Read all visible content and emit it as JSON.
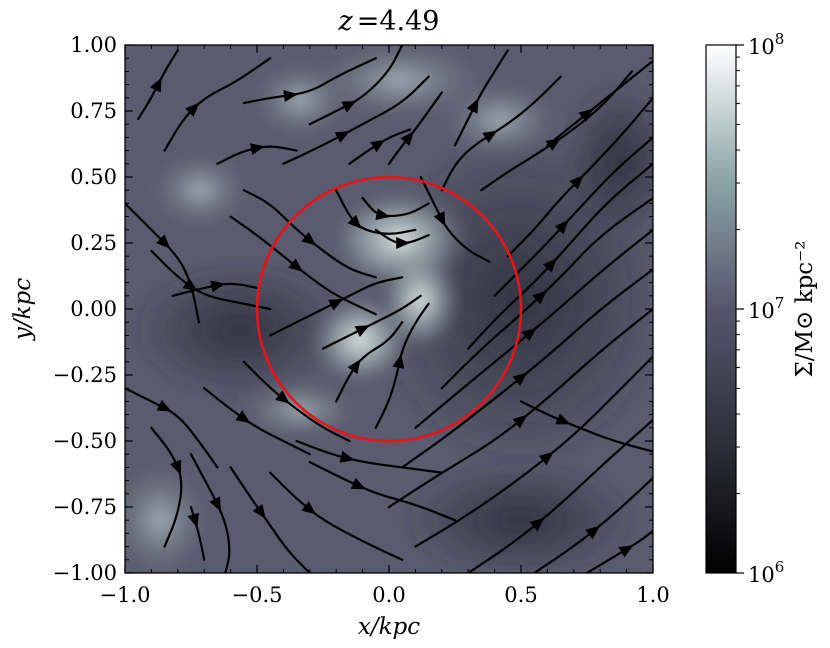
{
  "chart_data": {
    "type": "heatmap",
    "title": "z =4.49",
    "title_prefix": "z",
    "title_value": "=4.49",
    "xlabel": "x/kpc",
    "ylabel": "y/kpc",
    "xlim": [
      -1.0,
      1.0
    ],
    "ylim": [
      -1.0,
      1.0
    ],
    "xticks": [
      -1.0,
      -0.5,
      0.0,
      0.5,
      1.0
    ],
    "xtick_labels": [
      "−1.0",
      "−0.5",
      "0.0",
      "0.5",
      "1.0"
    ],
    "yticks": [
      1.0,
      0.75,
      0.5,
      0.25,
      0.0,
      -0.25,
      -0.5,
      -0.75,
      -1.0
    ],
    "ytick_labels": [
      "1.00",
      "0.75",
      "0.50",
      "0.25",
      "0.00",
      "−0.25",
      "−0.50",
      "−0.75",
      "−1.00"
    ],
    "colorbar": {
      "label": "Σ/M⊙ kpc⁻²",
      "scale": "log",
      "range": [
        1000000,
        100000000
      ],
      "tick_values": [
        100000000,
        10000000,
        1000000
      ],
      "tick_base": "10",
      "tick_exponents": [
        "8",
        "7",
        "6"
      ]
    },
    "circle": {
      "center": [
        0.0,
        0.0
      ],
      "radius": 0.5,
      "color": "#e8141b"
    },
    "colors": {
      "low": "#000000",
      "mid": "#4c4c60",
      "high": "#ffffff",
      "streamline": "#000000"
    },
    "streamlines": "overlay of black velocity-field streamlines with arrows"
  }
}
